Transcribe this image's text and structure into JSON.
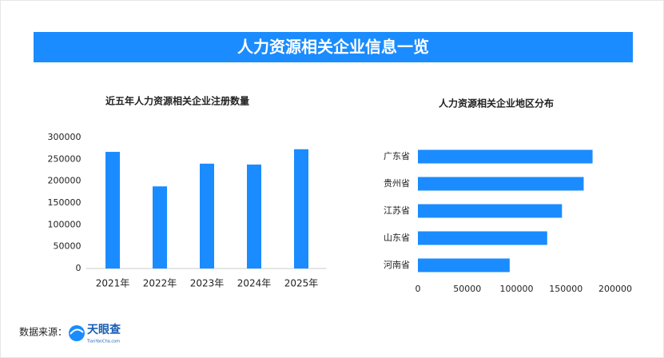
{
  "header": {
    "title": "人力资源相关企业信息一览"
  },
  "footer": {
    "source_label": "数据来源：",
    "logo_name": "天眼查",
    "logo_site": "TianYanCha.com"
  },
  "chart_data": [
    {
      "type": "bar",
      "title": "近五年人力资源相关企业注册数量",
      "categories": [
        "2021年",
        "2022年",
        "2023年",
        "2024年",
        "2025年"
      ],
      "values": [
        267000,
        188000,
        240000,
        238000,
        273000
      ],
      "color": "#1a8cff",
      "ylim": [
        0,
        300000
      ],
      "yticks": [
        0,
        50000,
        100000,
        150000,
        200000,
        250000,
        300000
      ],
      "grid": false
    },
    {
      "type": "bar",
      "orientation": "horizontal",
      "title": "人力资源相关企业地区分布",
      "categories": [
        "广东省",
        "贵州省",
        "江苏省",
        "山东省",
        "河南省"
      ],
      "values": [
        177000,
        168000,
        146000,
        131000,
        93000
      ],
      "color": "#1a8cff",
      "xlim": [
        0,
        200000
      ],
      "xticks": [
        0,
        50000,
        100000,
        150000,
        200000
      ],
      "grid": false
    }
  ]
}
